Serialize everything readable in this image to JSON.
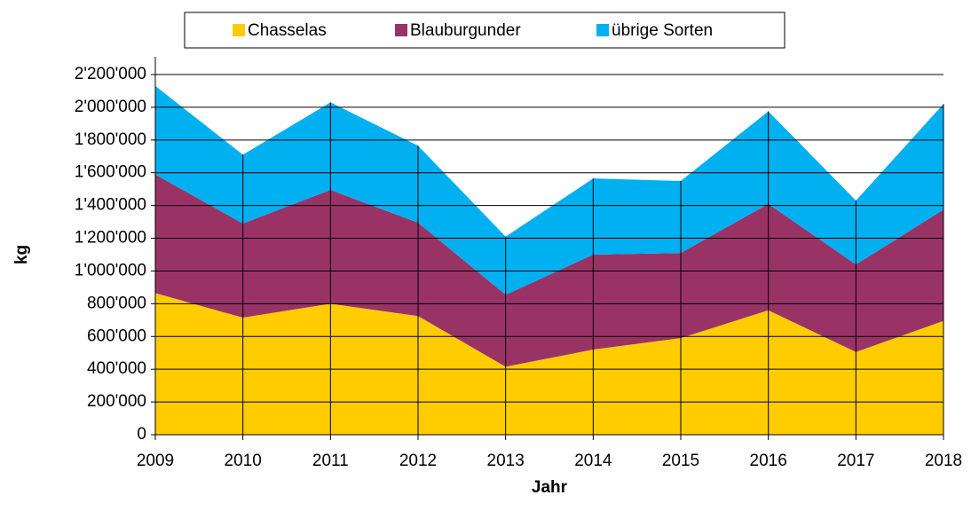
{
  "chart_data": {
    "type": "stacked_area",
    "x_label": "Jahr",
    "y_label": "kg",
    "categories": [
      "2009",
      "2010",
      "2011",
      "2012",
      "2013",
      "2014",
      "2015",
      "2016",
      "2017",
      "2018"
    ],
    "series": [
      {
        "name": "Chasselas",
        "color": "#ffcc00",
        "values": [
          865000,
          715000,
          800000,
          725000,
          415000,
          520000,
          590000,
          760000,
          505000,
          695000
        ]
      },
      {
        "name": "Blauburgunder",
        "color": "#993366",
        "values": [
          725000,
          575000,
          695000,
          570000,
          440000,
          580000,
          520000,
          650000,
          535000,
          680000
        ]
      },
      {
        "name": "übrige Sorten",
        "color": "#00b0f0",
        "values": [
          540000,
          420000,
          535000,
          470000,
          355000,
          465000,
          440000,
          565000,
          390000,
          645000
        ]
      }
    ],
    "ylim": [
      0,
      2200000
    ],
    "yticks": [
      0,
      {
        "value": 200000,
        "label": "200'000"
      },
      {
        "value": 400000,
        "label": "400'000"
      },
      {
        "value": 600000,
        "label": "600'000"
      },
      {
        "value": 800000,
        "label": "800'000"
      },
      {
        "value": 1000000,
        "label": "1'000'000"
      },
      {
        "value": 1200000,
        "label": "1'200'000"
      },
      {
        "value": 1400000,
        "label": "1'400'000"
      },
      {
        "value": 1600000,
        "label": "1'600'000"
      },
      {
        "value": 1800000,
        "label": "1'800'000"
      },
      {
        "value": 2000000,
        "label": "2'000'000"
      },
      {
        "value": 2200000,
        "label": "2'200'000"
      }
    ],
    "grid": true,
    "legend": "top"
  }
}
